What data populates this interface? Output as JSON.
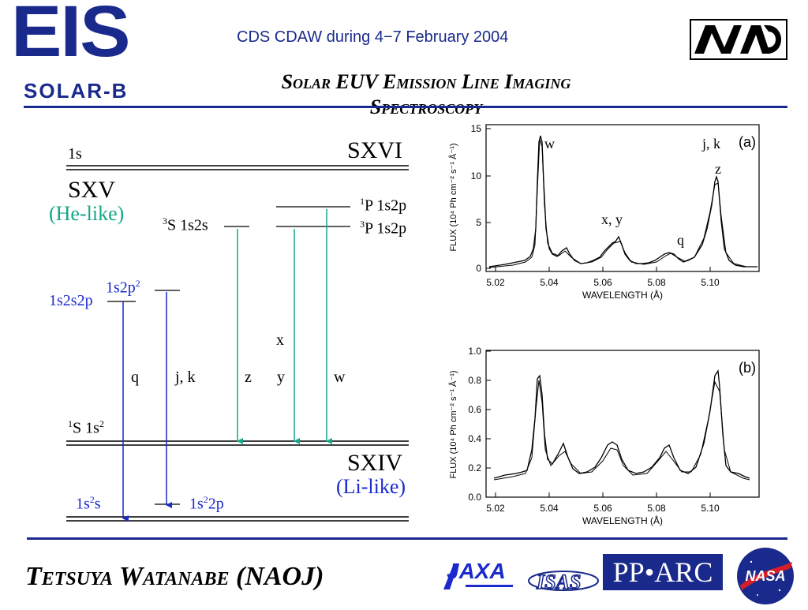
{
  "header": {
    "logo_eis_big": "EIS",
    "logo_eis_small": "SOLAR-B",
    "subtitle": "CDS CDAW during 4−7 February 2004",
    "title_line1": "Solar EUV Emission Line Imaging",
    "title_line2": "Spectroscopy",
    "logo_nao": "NAO"
  },
  "diagram": {
    "sxvi": {
      "config": "1s",
      "ion": "SXVI"
    },
    "sxv": {
      "ion": "SXV",
      "type": "(He-like)"
    },
    "levels": {
      "s3_term": "3",
      "s3_rest": "S 1s2s",
      "p1_term": "1",
      "p1_rest": "P 1s2p",
      "p3_term": "3",
      "p3_rest": "P 1s2p",
      "s1_term": "1",
      "s1_rest": "S 1s",
      "s1_sup": "2",
      "left_1s2s2p": "1s2s2p",
      "left_1s2p2": "1s2p",
      "left_1s2p2_sup": "2",
      "li_1s22s_a": "1s",
      "li_1s22s_sup": "2",
      "li_1s22s_b": "s",
      "li_1s22p_a": "1s",
      "li_1s22p_sup": "2",
      "li_1s22p_b": "2p"
    },
    "transitions": {
      "q": "q",
      "jk": "j, k",
      "z": "z",
      "x": "x",
      "y": "y",
      "w": "w"
    },
    "sxiv": {
      "ion": "SXIV",
      "type": "(Li-like)"
    }
  },
  "plots": [
    {
      "panel": "(a)",
      "ylabel": "FLUX (10⁴ Ph cm⁻² s⁻¹ Å⁻¹)",
      "xlabel": "WAVELENGTH (Å)",
      "xticks": [
        "5.02",
        "5.04",
        "5.06",
        "5.08",
        "5.10"
      ],
      "yticks": [
        "0",
        "5",
        "10",
        "15"
      ],
      "annotations": {
        "w": "w",
        "jk": "j, k",
        "z": "z",
        "xy": "x, y",
        "q": "q"
      }
    },
    {
      "panel": "(b)",
      "ylabel": "FLUX (10⁴ Ph cm⁻² s⁻¹ Å⁻¹)",
      "xlabel": "WAVELENGTH (Å)",
      "xticks": [
        "5.02",
        "5.04",
        "5.06",
        "5.08",
        "5.10"
      ],
      "yticks": [
        "0.0",
        "0.2",
        "0.4",
        "0.6",
        "0.8",
        "1.0"
      ]
    }
  ],
  "footer": {
    "name": "Tetsuya Watanabe  (NAOJ)",
    "logo_jaxa": "JAXA",
    "logo_isas": "ISAS",
    "logo_pparc": "PP•ARC",
    "logo_nasa": "NASA"
  },
  "colors": {
    "navy": "#1a2a8c",
    "blue": "#1a2acc",
    "teal": "#14a888"
  }
}
